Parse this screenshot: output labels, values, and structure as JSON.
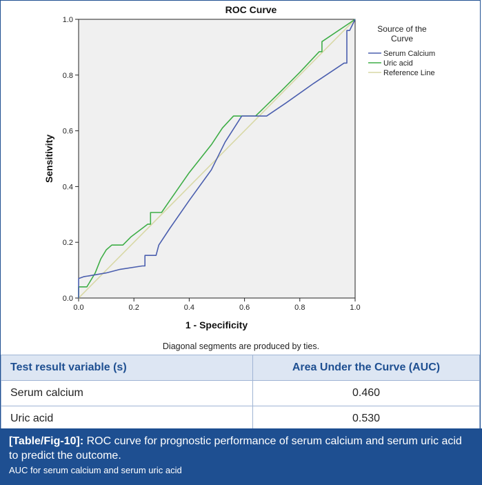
{
  "chart_data": {
    "type": "line",
    "title": "ROC Curve",
    "xlabel": "1 - Specificity",
    "ylabel": "Sensitivity",
    "xlim": [
      0.0,
      1.0
    ],
    "ylim": [
      0.0,
      1.0
    ],
    "xticks": [
      "0.0",
      "0.2",
      "0.4",
      "0.6",
      "0.8",
      "1.0"
    ],
    "yticks": [
      "0.0",
      "0.2",
      "0.4",
      "0.6",
      "0.8",
      "1.0"
    ],
    "legend_title": "Source of the Curve",
    "legend_position": "right",
    "series": [
      {
        "name": "Serum Calcium",
        "color": "#4a5eae",
        "points": [
          [
            0,
            0
          ],
          [
            0,
            0.07
          ],
          [
            0.02,
            0.077
          ],
          [
            0.04,
            0.08
          ],
          [
            0.1,
            0.09
          ],
          [
            0.15,
            0.103
          ],
          [
            0.23,
            0.115
          ],
          [
            0.24,
            0.115
          ],
          [
            0.24,
            0.153
          ],
          [
            0.28,
            0.153
          ],
          [
            0.29,
            0.19
          ],
          [
            0.33,
            0.25
          ],
          [
            0.4,
            0.35
          ],
          [
            0.48,
            0.46
          ],
          [
            0.53,
            0.56
          ],
          [
            0.59,
            0.653
          ],
          [
            0.68,
            0.653
          ],
          [
            0.75,
            0.7
          ],
          [
            0.85,
            0.77
          ],
          [
            0.96,
            0.843
          ],
          [
            0.97,
            0.843
          ],
          [
            0.97,
            0.96
          ],
          [
            0.98,
            0.96
          ],
          [
            0.99,
            0.98
          ],
          [
            1,
            1
          ]
        ]
      },
      {
        "name": "Uric acid",
        "color": "#3dad45",
        "points": [
          [
            0,
            0
          ],
          [
            0,
            0.04
          ],
          [
            0.03,
            0.04
          ],
          [
            0.06,
            0.09
          ],
          [
            0.08,
            0.14
          ],
          [
            0.1,
            0.173
          ],
          [
            0.12,
            0.19
          ],
          [
            0.16,
            0.19
          ],
          [
            0.19,
            0.22
          ],
          [
            0.25,
            0.265
          ],
          [
            0.26,
            0.265
          ],
          [
            0.26,
            0.307
          ],
          [
            0.3,
            0.307
          ],
          [
            0.33,
            0.35
          ],
          [
            0.4,
            0.45
          ],
          [
            0.48,
            0.55
          ],
          [
            0.52,
            0.61
          ],
          [
            0.56,
            0.653
          ],
          [
            0.64,
            0.653
          ],
          [
            0.73,
            0.74
          ],
          [
            0.8,
            0.81
          ],
          [
            0.87,
            0.884
          ],
          [
            0.88,
            0.884
          ],
          [
            0.88,
            0.92
          ],
          [
            1,
            1
          ]
        ]
      },
      {
        "name": "Reference Line",
        "color": "#d8d8a6",
        "points": [
          [
            0,
            0
          ],
          [
            1,
            1
          ]
        ]
      }
    ],
    "footnote": "Diagonal segments are produced by ties."
  },
  "table": {
    "headers": [
      "Test result variable (s)",
      "Area Under the Curve (AUC)"
    ],
    "rows": [
      [
        "Serum calcium",
        "0.460"
      ],
      [
        "Uric acid",
        "0.530"
      ]
    ]
  },
  "caption": {
    "tag": "[Table/Fig-10]:",
    "text": " ROC curve for prognostic performance of serum calcium and serum uric acid to predict the outcome.",
    "subtext": "AUC for serum calcium and serum uric acid"
  },
  "colors": {
    "accent": "#1e4f91",
    "plot_bg": "#f0f0f0",
    "header_bg": "#dde6f3"
  }
}
